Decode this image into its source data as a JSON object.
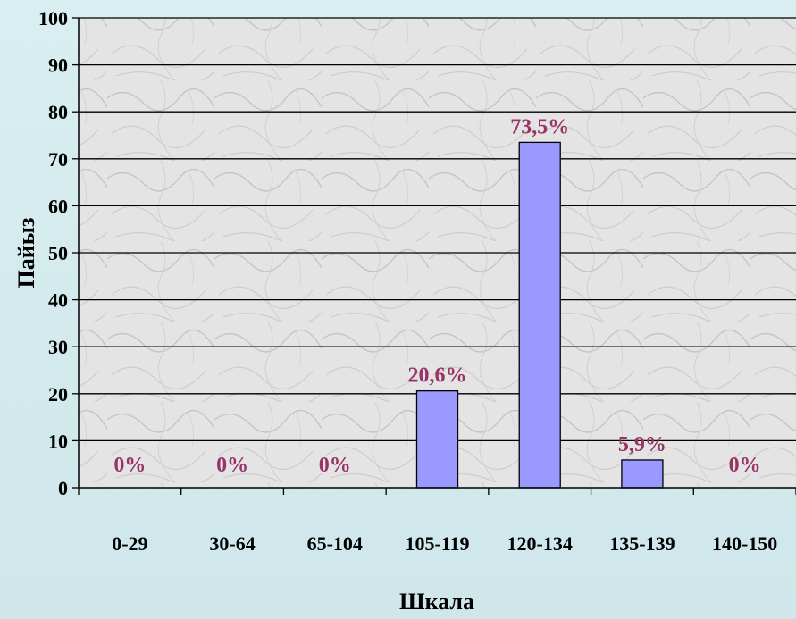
{
  "chart_data": {
    "type": "bar",
    "title": "",
    "xlabel": "Шкала",
    "ylabel": "Пайыз",
    "categories": [
      "0-29",
      "30-64",
      "65-104",
      "105-119",
      "120-134",
      "135-139",
      "140-150"
    ],
    "values": [
      0,
      0,
      0,
      20.6,
      73.5,
      5.9,
      0
    ],
    "data_labels": [
      "0%",
      "0%",
      "0%",
      "20,6%",
      "73,5%",
      "5,9%",
      "0%"
    ],
    "ylim": [
      0,
      100
    ],
    "yticks": [
      0,
      10,
      20,
      30,
      40,
      50,
      60,
      70,
      80,
      90,
      100
    ],
    "grid": true,
    "legend": "none",
    "colors": {
      "bar_fill": "#9999ff",
      "bar_stroke": "#000000",
      "data_label": "#993366",
      "plot_background": "#e6e6e6",
      "page_background": "#d9eef1"
    }
  }
}
